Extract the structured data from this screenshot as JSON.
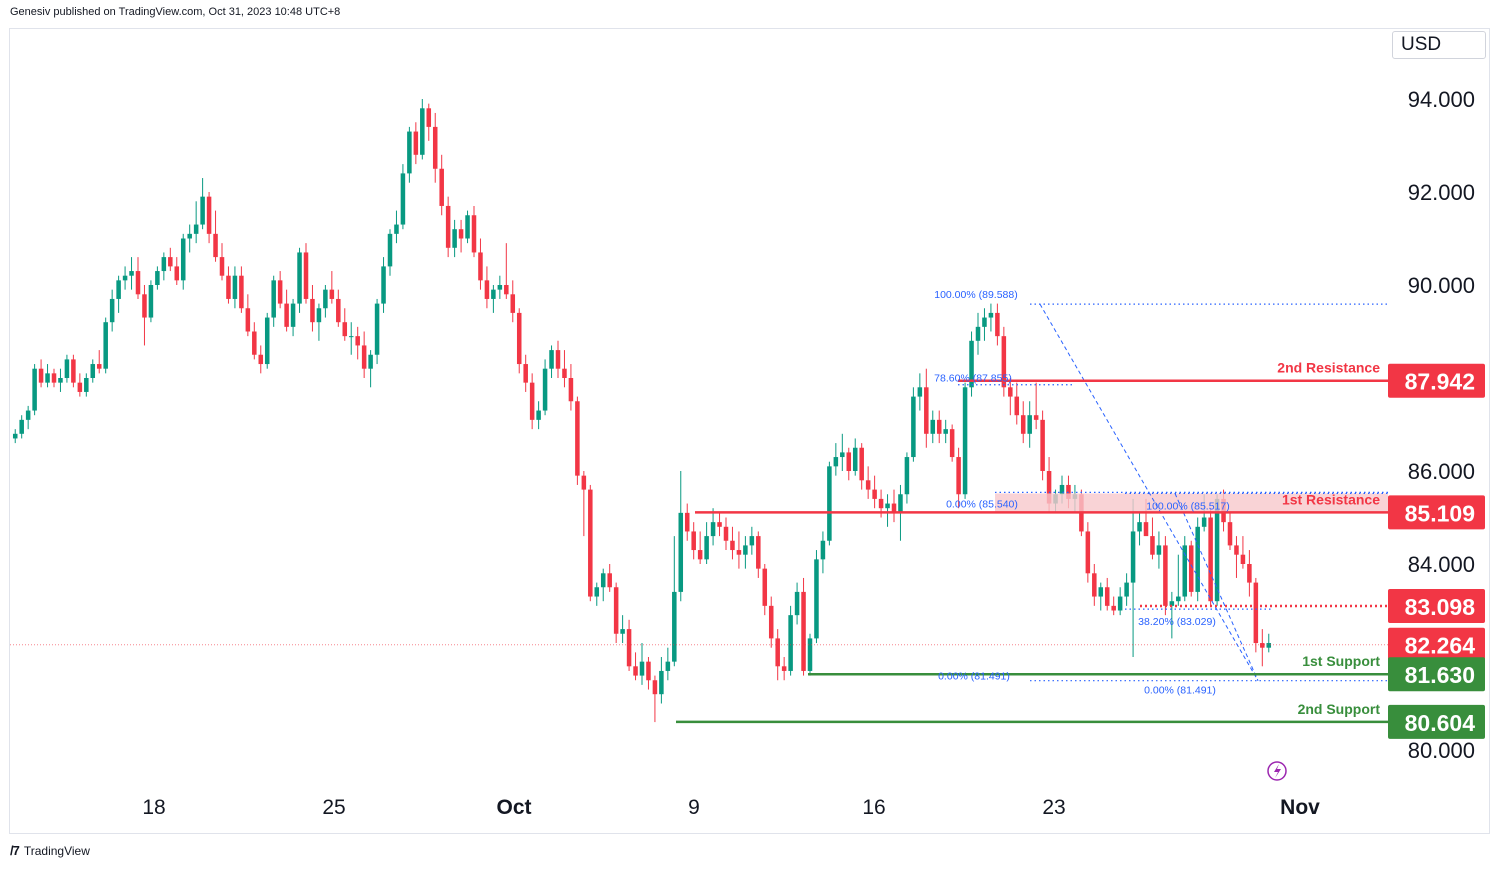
{
  "header": {
    "published": "Genesiv published on TradingView.com, Oct 31, 2023 10:48 UTC+8"
  },
  "currency": "USD",
  "footer": {
    "brand": "TradingView",
    "logo": "tradingview-logo-icon"
  },
  "colors": {
    "up": "#089981",
    "down": "#f23645",
    "resistance": "#f23645",
    "support": "#388e3c",
    "fib": "#2962ff",
    "zone": "#f8c8cc"
  },
  "chart_data": {
    "type": "candlestick",
    "ylim": [
      79.0,
      95.5
    ],
    "y_ticks": [
      "94.000",
      "92.000",
      "90.000",
      "86.000",
      "84.000",
      "80.000"
    ],
    "x_ticks": [
      "18",
      "25",
      "Oct",
      "9",
      "16",
      "23",
      "Nov"
    ],
    "last_price": 82.264,
    "levels": [
      {
        "name": "2nd Resistance",
        "value": 87.942,
        "label": "87.942",
        "kind": "resistance"
      },
      {
        "name": "1st Resistance",
        "value": 85.109,
        "label": "85.109",
        "kind": "resistance"
      },
      {
        "name": "",
        "value": 83.098,
        "label": "83.098",
        "kind": "resistance"
      },
      {
        "name": "",
        "value": 82.264,
        "label": "82.264",
        "kind": "last"
      },
      {
        "name": "1st Support",
        "value": 81.63,
        "label": "81.630",
        "kind": "support"
      },
      {
        "name": "2nd Support",
        "value": 80.604,
        "label": "80.604",
        "kind": "support"
      }
    ],
    "fib_labels": [
      {
        "text": "100.00% (89.588)",
        "value": 89.588
      },
      {
        "text": "78.60% (87.855)",
        "value": 87.855
      },
      {
        "text": "0.00% (85.540)",
        "value": 85.54
      },
      {
        "text": "100.00% (85.517)",
        "value": 85.517
      },
      {
        "text": "38.20% (83.029)",
        "value": 83.029
      },
      {
        "text": "0.00% (81.491)",
        "value": 81.491
      },
      {
        "text": "0.00% (81.491)",
        "value": 81.491
      }
    ],
    "candles": [
      [
        86.7,
        86.9,
        86.6,
        86.8
      ],
      [
        86.8,
        87.2,
        86.7,
        87.1
      ],
      [
        87.1,
        87.4,
        86.9,
        87.3
      ],
      [
        87.3,
        88.3,
        87.2,
        88.2
      ],
      [
        88.2,
        88.4,
        87.8,
        87.9
      ],
      [
        87.9,
        88.3,
        87.8,
        88.1
      ],
      [
        88.1,
        88.2,
        87.8,
        87.9
      ],
      [
        87.9,
        88.2,
        87.7,
        88.0
      ],
      [
        88.0,
        88.5,
        87.9,
        88.4
      ],
      [
        88.4,
        88.5,
        87.8,
        87.9
      ],
      [
        87.9,
        88.1,
        87.6,
        87.7
      ],
      [
        87.7,
        88.1,
        87.6,
        88.0
      ],
      [
        88.0,
        88.4,
        87.9,
        88.3
      ],
      [
        88.3,
        88.6,
        88.1,
        88.2
      ],
      [
        88.2,
        89.3,
        88.1,
        89.2
      ],
      [
        89.2,
        89.9,
        89.0,
        89.7
      ],
      [
        89.7,
        90.2,
        89.4,
        90.1
      ],
      [
        90.1,
        90.4,
        89.9,
        90.2
      ],
      [
        90.2,
        90.6,
        89.9,
        90.3
      ],
      [
        90.3,
        90.6,
        89.7,
        89.8
      ],
      [
        89.8,
        90.0,
        88.7,
        89.3
      ],
      [
        89.3,
        90.1,
        89.2,
        90.0
      ],
      [
        90.0,
        90.4,
        89.9,
        90.3
      ],
      [
        90.3,
        90.7,
        90.1,
        90.6
      ],
      [
        90.6,
        90.8,
        90.3,
        90.4
      ],
      [
        90.4,
        90.6,
        90.0,
        90.1
      ],
      [
        90.1,
        91.1,
        89.9,
        91.0
      ],
      [
        91.0,
        91.3,
        90.7,
        91.1
      ],
      [
        91.1,
        91.8,
        90.9,
        91.3
      ],
      [
        91.3,
        92.3,
        91.2,
        91.9
      ],
      [
        91.9,
        92.0,
        90.9,
        91.1
      ],
      [
        91.1,
        91.6,
        90.5,
        90.6
      ],
      [
        90.6,
        90.9,
        90.1,
        90.2
      ],
      [
        90.2,
        90.4,
        89.6,
        89.7
      ],
      [
        89.7,
        90.4,
        89.5,
        90.2
      ],
      [
        90.2,
        90.4,
        89.4,
        89.5
      ],
      [
        89.5,
        89.8,
        88.9,
        89.0
      ],
      [
        89.0,
        89.2,
        88.4,
        88.5
      ],
      [
        88.5,
        88.7,
        88.1,
        88.3
      ],
      [
        88.3,
        89.4,
        88.2,
        89.3
      ],
      [
        89.3,
        90.2,
        89.1,
        90.1
      ],
      [
        90.1,
        90.3,
        89.5,
        89.6
      ],
      [
        89.6,
        89.9,
        89.0,
        89.1
      ],
      [
        89.1,
        89.7,
        88.9,
        89.6
      ],
      [
        89.6,
        90.8,
        89.4,
        90.7
      ],
      [
        90.7,
        90.9,
        89.6,
        89.7
      ],
      [
        89.7,
        90.0,
        89.0,
        89.2
      ],
      [
        89.2,
        89.6,
        88.8,
        89.5
      ],
      [
        89.5,
        90.0,
        89.3,
        89.9
      ],
      [
        89.9,
        90.3,
        89.6,
        89.7
      ],
      [
        89.7,
        89.9,
        89.1,
        89.2
      ],
      [
        89.2,
        89.5,
        88.8,
        88.9
      ],
      [
        88.9,
        89.2,
        88.5,
        88.9
      ],
      [
        88.9,
        89.1,
        88.4,
        88.7
      ],
      [
        88.7,
        89.0,
        88.0,
        88.2
      ],
      [
        88.2,
        88.6,
        87.8,
        88.5
      ],
      [
        88.5,
        89.7,
        88.3,
        89.6
      ],
      [
        89.6,
        90.6,
        89.4,
        90.4
      ],
      [
        90.4,
        91.2,
        90.2,
        91.1
      ],
      [
        91.1,
        91.6,
        90.9,
        91.3
      ],
      [
        91.3,
        92.6,
        91.2,
        92.4
      ],
      [
        92.4,
        93.4,
        92.2,
        93.3
      ],
      [
        93.3,
        93.5,
        92.6,
        92.8
      ],
      [
        92.8,
        94.0,
        92.7,
        93.8
      ],
      [
        93.8,
        93.9,
        93.1,
        93.4
      ],
      [
        93.4,
        93.7,
        92.2,
        92.5
      ],
      [
        92.5,
        92.8,
        91.5,
        91.7
      ],
      [
        91.7,
        91.9,
        90.6,
        90.8
      ],
      [
        90.8,
        91.4,
        90.6,
        91.2
      ],
      [
        91.2,
        91.4,
        90.7,
        91.0
      ],
      [
        91.0,
        91.6,
        90.9,
        91.5
      ],
      [
        91.5,
        91.7,
        90.6,
        90.7
      ],
      [
        90.7,
        91.0,
        89.9,
        90.1
      ],
      [
        90.1,
        90.4,
        89.5,
        89.7
      ],
      [
        89.7,
        90.0,
        89.4,
        89.9
      ],
      [
        89.9,
        90.2,
        89.7,
        90.0
      ],
      [
        90.0,
        90.9,
        89.7,
        89.8
      ],
      [
        89.8,
        90.1,
        89.2,
        89.4
      ],
      [
        89.4,
        89.5,
        88.1,
        88.3
      ],
      [
        88.3,
        88.5,
        87.7,
        87.9
      ],
      [
        87.9,
        88.1,
        86.9,
        87.1
      ],
      [
        87.1,
        87.5,
        86.9,
        87.3
      ],
      [
        87.3,
        88.4,
        87.2,
        88.2
      ],
      [
        88.2,
        88.7,
        88.0,
        88.6
      ],
      [
        88.6,
        88.8,
        88.0,
        88.2
      ],
      [
        88.2,
        88.6,
        87.8,
        88.0
      ],
      [
        88.0,
        88.3,
        87.3,
        87.5
      ],
      [
        87.5,
        87.6,
        85.7,
        85.9
      ],
      [
        85.9,
        86.0,
        84.6,
        85.6
      ],
      [
        85.6,
        85.7,
        83.2,
        83.3
      ],
      [
        83.3,
        83.6,
        83.1,
        83.5
      ],
      [
        83.5,
        83.9,
        83.2,
        83.8
      ],
      [
        83.8,
        84.0,
        83.4,
        83.5
      ],
      [
        83.5,
        83.6,
        82.3,
        82.5
      ],
      [
        82.5,
        82.9,
        82.3,
        82.6
      ],
      [
        82.6,
        82.8,
        81.7,
        81.8
      ],
      [
        81.8,
        82.1,
        81.5,
        81.6
      ],
      [
        81.6,
        82.3,
        81.4,
        81.9
      ],
      [
        81.9,
        82.0,
        81.3,
        81.5
      ],
      [
        81.5,
        81.6,
        80.6,
        81.2
      ],
      [
        81.2,
        82.0,
        81.0,
        81.7
      ],
      [
        81.7,
        82.2,
        81.5,
        81.9
      ],
      [
        81.9,
        84.6,
        81.8,
        83.4
      ],
      [
        83.4,
        86.0,
        83.2,
        85.1
      ],
      [
        85.1,
        85.3,
        84.5,
        84.7
      ],
      [
        84.7,
        84.9,
        84.1,
        84.3
      ],
      [
        84.3,
        84.7,
        84.0,
        84.1
      ],
      [
        84.1,
        84.9,
        84.0,
        84.6
      ],
      [
        84.6,
        85.2,
        84.4,
        84.9
      ],
      [
        84.9,
        85.1,
        84.6,
        84.8
      ],
      [
        84.8,
        85.0,
        84.3,
        84.5
      ],
      [
        84.5,
        84.8,
        84.1,
        84.3
      ],
      [
        84.3,
        84.7,
        83.9,
        84.2
      ],
      [
        84.2,
        84.6,
        83.9,
        84.4
      ],
      [
        84.4,
        84.8,
        84.2,
        84.6
      ],
      [
        84.6,
        84.7,
        83.7,
        83.9
      ],
      [
        83.9,
        84.0,
        82.9,
        83.1
      ],
      [
        83.1,
        83.3,
        82.2,
        82.4
      ],
      [
        82.4,
        82.6,
        81.5,
        81.8
      ],
      [
        81.8,
        82.0,
        81.5,
        81.7
      ],
      [
        81.7,
        83.1,
        81.6,
        82.9
      ],
      [
        82.9,
        83.6,
        82.7,
        83.4
      ],
      [
        83.4,
        83.7,
        81.6,
        81.7
      ],
      [
        81.7,
        82.5,
        81.6,
        82.4
      ],
      [
        82.4,
        84.3,
        82.3,
        84.1
      ],
      [
        84.1,
        84.7,
        83.8,
        84.5
      ],
      [
        84.5,
        86.2,
        84.4,
        86.1
      ],
      [
        86.1,
        86.6,
        85.9,
        86.3
      ],
      [
        86.3,
        86.8,
        86.0,
        86.4
      ],
      [
        86.4,
        86.5,
        85.8,
        86.0
      ],
      [
        86.0,
        86.7,
        85.9,
        86.5
      ],
      [
        86.5,
        86.6,
        85.6,
        85.8
      ],
      [
        85.8,
        86.1,
        85.4,
        85.6
      ],
      [
        85.6,
        85.9,
        85.2,
        85.4
      ],
      [
        85.4,
        85.6,
        85.0,
        85.2
      ],
      [
        85.2,
        85.5,
        84.8,
        85.3
      ],
      [
        85.3,
        85.6,
        84.9,
        85.1
      ],
      [
        85.1,
        85.7,
        84.5,
        85.5
      ],
      [
        85.5,
        86.4,
        85.3,
        86.3
      ],
      [
        86.3,
        87.8,
        86.2,
        87.6
      ],
      [
        87.6,
        88.1,
        87.3,
        87.8
      ],
      [
        87.8,
        88.2,
        86.5,
        86.8
      ],
      [
        86.8,
        87.3,
        86.6,
        87.1
      ],
      [
        87.1,
        87.3,
        86.6,
        86.8
      ],
      [
        86.8,
        87.1,
        86.6,
        86.9
      ],
      [
        86.9,
        87.0,
        86.2,
        86.3
      ],
      [
        86.3,
        86.5,
        85.2,
        85.5
      ],
      [
        85.5,
        87.9,
        85.4,
        87.8
      ],
      [
        87.8,
        89.0,
        87.6,
        88.8
      ],
      [
        88.8,
        89.4,
        88.5,
        89.1
      ],
      [
        89.1,
        89.5,
        88.8,
        89.3
      ],
      [
        89.3,
        89.6,
        89.0,
        89.4
      ],
      [
        89.4,
        89.6,
        88.7,
        88.9
      ],
      [
        88.9,
        89.1,
        87.6,
        87.8
      ],
      [
        87.8,
        88.0,
        87.2,
        87.6
      ],
      [
        87.6,
        87.9,
        87.0,
        87.2
      ],
      [
        87.2,
        87.5,
        86.6,
        86.8
      ],
      [
        86.8,
        87.5,
        86.5,
        87.2
      ],
      [
        87.2,
        87.9,
        86.9,
        87.1
      ],
      [
        87.1,
        87.3,
        85.8,
        86.0
      ],
      [
        86.0,
        86.3,
        85.1,
        85.3
      ],
      [
        85.3,
        85.6,
        85.1,
        85.5
      ],
      [
        85.5,
        85.9,
        85.3,
        85.7
      ],
      [
        85.7,
        85.9,
        85.2,
        85.4
      ],
      [
        85.4,
        85.7,
        85.1,
        85.5
      ],
      [
        85.5,
        85.6,
        84.6,
        84.7
      ],
      [
        84.7,
        84.9,
        83.6,
        83.8
      ],
      [
        83.8,
        84.0,
        83.1,
        83.3
      ],
      [
        83.3,
        83.6,
        83.0,
        83.5
      ],
      [
        83.5,
        83.7,
        83.0,
        83.1
      ],
      [
        83.1,
        83.3,
        82.9,
        83.0
      ],
      [
        83.0,
        83.5,
        82.9,
        83.3
      ],
      [
        83.3,
        83.8,
        83.1,
        83.6
      ],
      [
        83.6,
        85.4,
        82.0,
        84.7
      ],
      [
        84.7,
        85.1,
        84.4,
        84.9
      ],
      [
        84.9,
        85.4,
        84.7,
        84.6
      ],
      [
        84.6,
        85.0,
        84.1,
        84.2
      ],
      [
        84.2,
        84.7,
        83.9,
        84.4
      ],
      [
        84.4,
        84.6,
        82.9,
        83.1
      ],
      [
        83.1,
        83.4,
        82.4,
        83.2
      ],
      [
        83.2,
        84.2,
        83.1,
        83.3
      ],
      [
        83.3,
        84.6,
        83.2,
        84.4
      ],
      [
        84.4,
        84.5,
        83.3,
        83.4
      ],
      [
        83.4,
        85.0,
        83.2,
        84.8
      ],
      [
        84.8,
        85.5,
        84.7,
        85.0
      ],
      [
        85.0,
        85.2,
        83.1,
        83.2
      ],
      [
        83.2,
        85.5,
        83.1,
        85.4
      ],
      [
        85.4,
        85.6,
        84.7,
        84.9
      ],
      [
        84.9,
        85.1,
        84.3,
        84.4
      ],
      [
        84.4,
        84.6,
        83.7,
        84.2
      ],
      [
        84.2,
        84.6,
        83.9,
        84.0
      ],
      [
        84.0,
        84.3,
        83.3,
        83.6
      ],
      [
        83.6,
        83.7,
        82.1,
        82.3
      ],
      [
        82.3,
        82.6,
        81.8,
        82.2
      ],
      [
        82.2,
        82.5,
        82.1,
        82.3
      ]
    ]
  }
}
